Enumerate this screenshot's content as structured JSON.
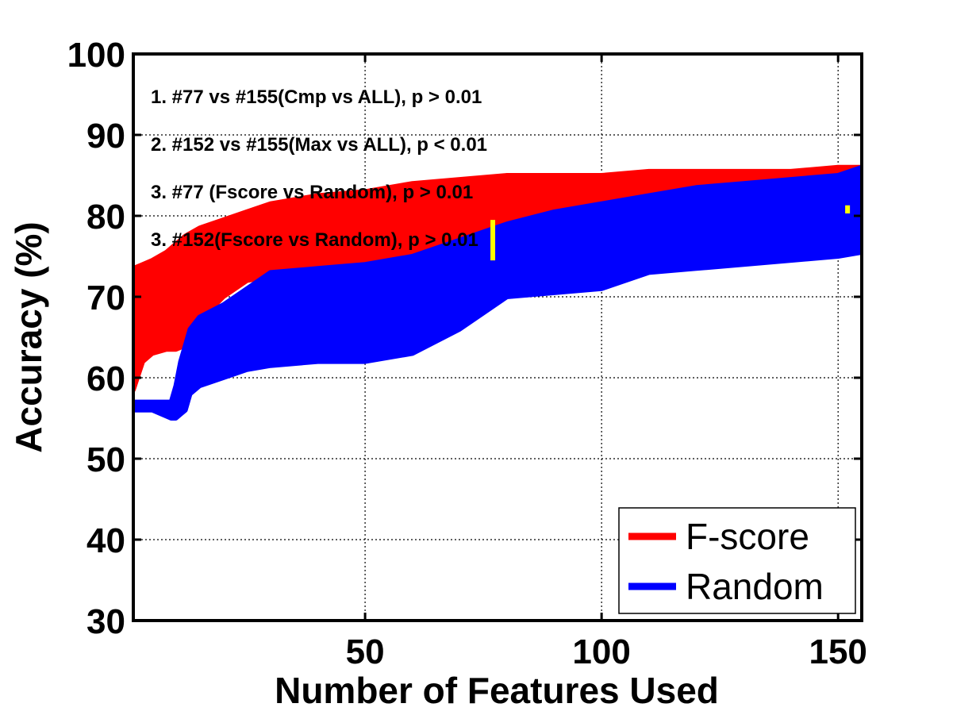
{
  "chart_data": {
    "type": "line",
    "title": "",
    "xlabel": "Number of Features Used",
    "ylabel": "Accuracy (%)",
    "xlim": [
      1,
      155
    ],
    "ylim": [
      30,
      100
    ],
    "xticks": [
      50,
      100,
      150
    ],
    "yticks": [
      30,
      40,
      50,
      60,
      70,
      80,
      90,
      100
    ],
    "grid": true,
    "legend_position": "bottom-right",
    "annotations": [
      "1. #77 vs #155(Cmp vs ALL), p > 0.01",
      "2. #152 vs #155(Max vs ALL), p < 0.01",
      "3. #77 (Fscore vs Random), p > 0.01",
      "3. #152(Fscore vs Random), p > 0.01"
    ],
    "markers": [
      {
        "x": 77,
        "y_low": 74.5,
        "y_high": 79.5,
        "color": "#ffff00"
      },
      {
        "x": 152,
        "y_low": 80.3,
        "y_high": 81.3,
        "color": "#ffff00"
      }
    ],
    "series": [
      {
        "name": "F-score",
        "color": "#ff0000",
        "x": [
          1,
          3,
          5,
          8,
          10,
          12,
          15,
          20,
          25,
          30,
          40,
          50,
          60,
          70,
          80,
          90,
          100,
          110,
          120,
          130,
          140,
          150,
          155
        ],
        "upper": [
          73.5,
          74,
          74.5,
          75.5,
          76.5,
          77.5,
          78.5,
          79.5,
          80.5,
          81.5,
          82.5,
          83,
          84,
          84.5,
          85,
          85,
          85,
          85.5,
          85.5,
          85.5,
          85.5,
          86,
          86
        ],
        "lower": [
          58.5,
          62,
          63,
          63.5,
          63.5,
          64,
          67,
          70,
          72,
          72.5,
          73,
          73,
          73.5,
          74,
          74.5,
          75,
          75,
          75,
          75.5,
          75.5,
          75.5,
          75.5,
          75.5
        ]
      },
      {
        "name": "Random",
        "color": "#0000ff",
        "x": [
          1,
          5,
          9,
          10,
          11,
          12,
          13,
          15,
          20,
          25,
          30,
          40,
          50,
          60,
          70,
          75,
          80,
          90,
          100,
          110,
          120,
          130,
          140,
          150,
          155
        ],
        "upper": [
          57,
          57,
          57,
          59,
          62,
          64,
          66,
          67.5,
          69,
          71,
          73,
          73.5,
          74,
          75,
          77,
          78,
          79,
          80.5,
          81.5,
          82.5,
          83.5,
          84,
          84.5,
          85,
          86
        ],
        "lower": [
          56,
          56,
          55,
          55,
          55.5,
          56,
          58,
          59,
          60,
          61,
          61.5,
          62,
          62,
          63,
          66,
          68,
          70,
          70.5,
          71,
          73,
          73.5,
          74,
          74.5,
          75,
          75.5
        ]
      }
    ]
  }
}
